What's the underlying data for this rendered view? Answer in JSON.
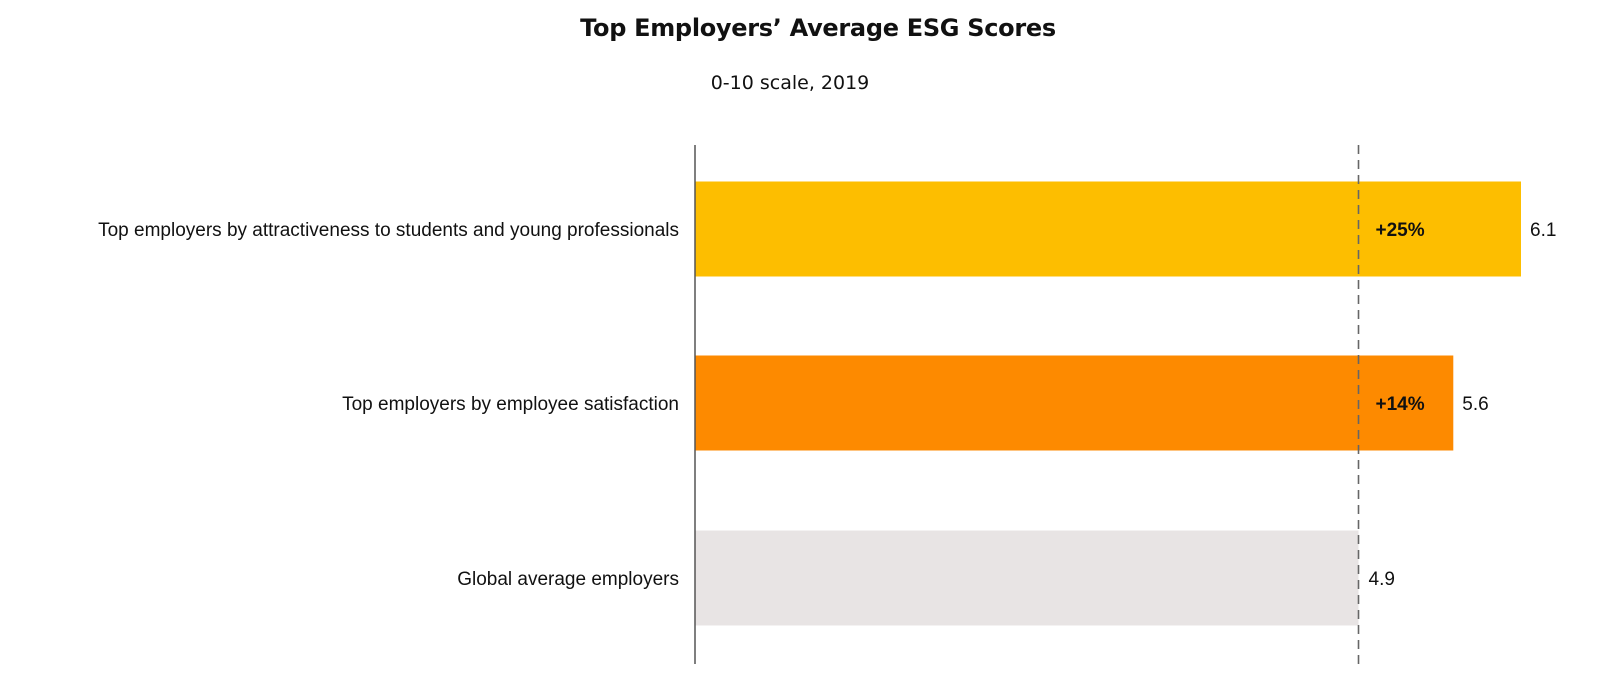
{
  "chart_data": {
    "type": "bar",
    "orientation": "horizontal",
    "title": "Top Employers’ Average ESG Scores",
    "subtitle": "0-10 scale, 2019",
    "categories": [
      "Top employers by attractiveness to students and young professionals",
      "Top employers by employee satisfaction",
      "Global average employers"
    ],
    "values": [
      6.1,
      5.6,
      4.9
    ],
    "value_labels": [
      "6.1",
      "5.6",
      "4.9"
    ],
    "change_labels": [
      "+25%",
      "+14%",
      ""
    ],
    "reference_line": {
      "value": 4.9,
      "style": "dashed"
    },
    "colors": [
      "#FDBE00",
      "#FD8A00",
      "#E8E4E4"
    ],
    "axis_color": "#555555",
    "grid": false,
    "legend": "none"
  }
}
